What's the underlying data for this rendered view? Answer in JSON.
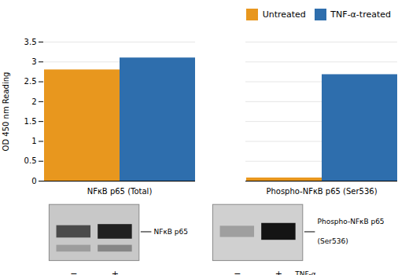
{
  "chart_data": {
    "type": "bar",
    "categories": [
      "NFκB p65 (Total)",
      "Phospho-NFκB p65 (Ser536)"
    ],
    "series": [
      {
        "name": "Untreated",
        "color": "#E8971E",
        "values": [
          2.8,
          0.08
        ]
      },
      {
        "name": "TNF-α-treated",
        "color": "#2E6EAD",
        "values": [
          3.1,
          2.68
        ]
      }
    ],
    "ylabel": "OD 450 nm Reading",
    "ylim": [
      0,
      3.5
    ],
    "yticks": [
      0,
      0.5,
      1,
      1.5,
      2,
      2.5,
      3,
      3.5
    ],
    "grid": true,
    "legend": "upper right",
    "annotations": [
      "NFκB p65",
      "Phospho-NFκB p65",
      "(Ser536)",
      "−",
      "+",
      "−",
      "+",
      "TNF-α"
    ]
  }
}
